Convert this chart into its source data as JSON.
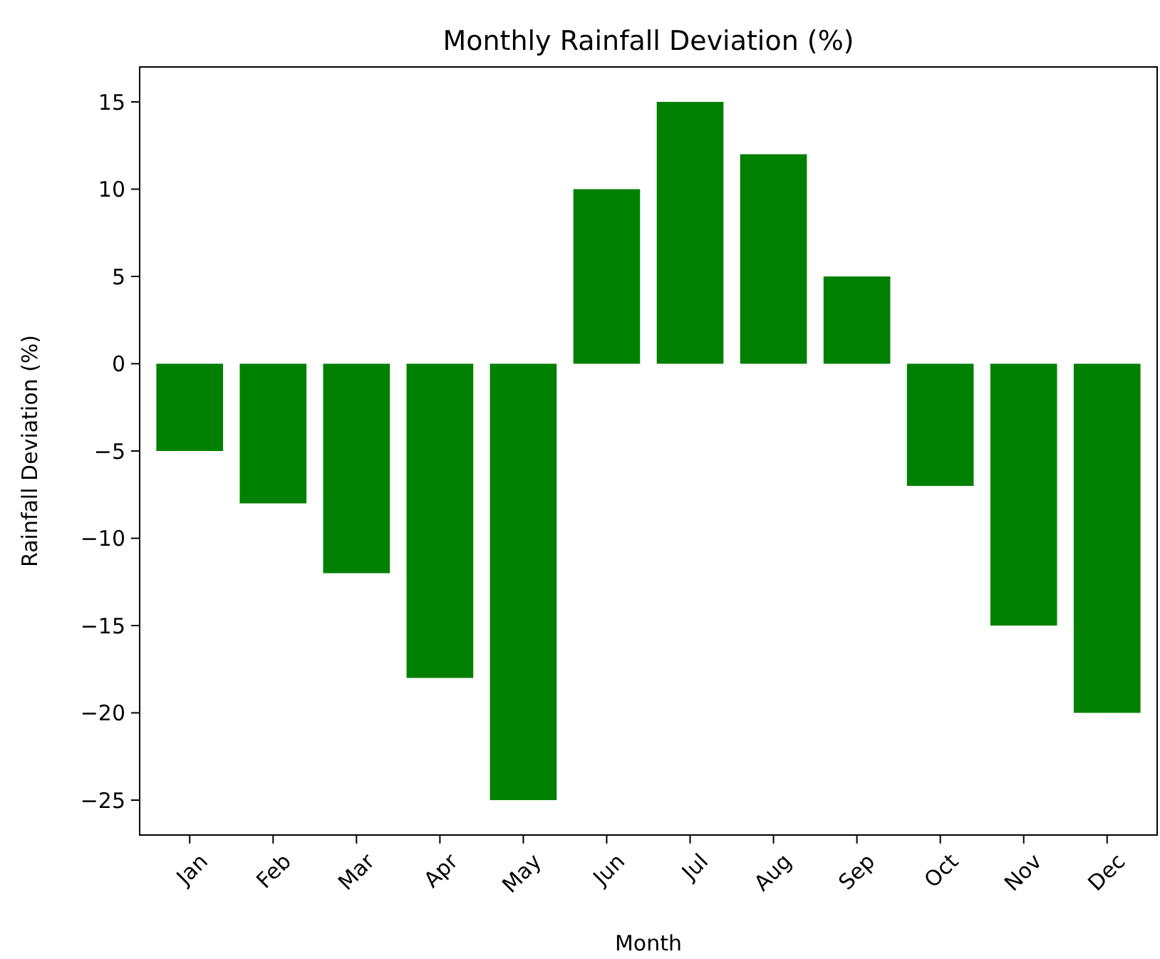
{
  "chart_data": {
    "type": "bar",
    "title": "Monthly Rainfall Deviation (%)",
    "xlabel": "Month",
    "ylabel": "Rainfall Deviation (%)",
    "categories": [
      "Jan",
      "Feb",
      "Mar",
      "Apr",
      "May",
      "Jun",
      "Jul",
      "Aug",
      "Sep",
      "Oct",
      "Nov",
      "Dec"
    ],
    "values": [
      -5,
      -8,
      -12,
      -18,
      -25,
      10,
      15,
      12,
      5,
      -7,
      -15,
      -20
    ],
    "color": "#008000",
    "ylim": [
      -27,
      17
    ],
    "yticks": [
      {
        "value": -25,
        "label": "−25"
      },
      {
        "value": -20,
        "label": "−20"
      },
      {
        "value": -15,
        "label": "−15"
      },
      {
        "value": -10,
        "label": "−10"
      },
      {
        "value": -5,
        "label": "−5"
      },
      0,
      5,
      10,
      15
    ],
    "grid": false
  }
}
